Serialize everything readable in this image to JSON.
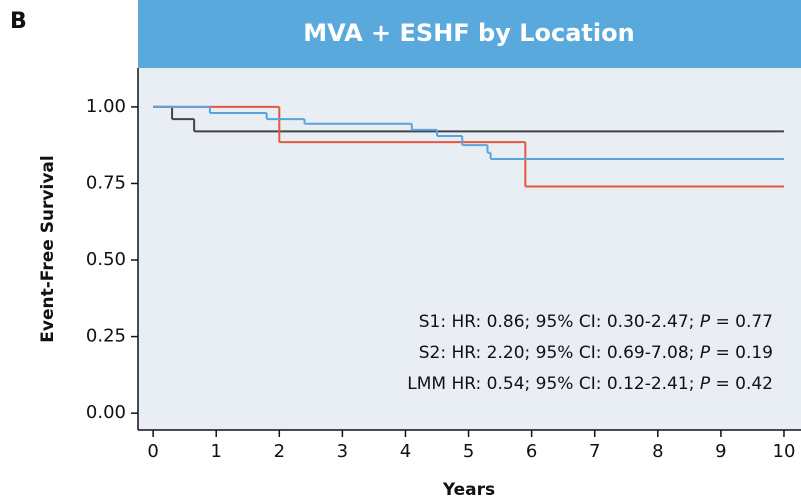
{
  "chart_data": {
    "type": "step",
    "panel_label": "B",
    "title": "MVA + ESHF by Location",
    "xlabel": "Years",
    "ylabel": "Event-Free Survival",
    "xlim": [
      -0.24,
      10.27
    ],
    "ylim": [
      -0.055,
      1.127
    ],
    "xticks": [
      0,
      1,
      2,
      3,
      4,
      5,
      6,
      7,
      8,
      9,
      10
    ],
    "yticks": [
      {
        "value": 0,
        "label": "0.00"
      },
      {
        "value": 0.25,
        "label": "0.25"
      },
      {
        "value": 0.5,
        "label": "0.50"
      },
      {
        "value": 0.75,
        "label": "0.75"
      },
      {
        "value": 1,
        "label": "1.00"
      }
    ],
    "series": [
      {
        "color": "#404448",
        "x": [
          0,
          0.3,
          0.65,
          10
        ],
        "values": [
          1.0,
          0.96,
          0.92,
          0.92
        ]
      },
      {
        "color": "#e8553f",
        "x": [
          0,
          2.0,
          5.9,
          10
        ],
        "values": [
          1.0,
          0.885,
          0.74,
          0.74
        ]
      },
      {
        "color": "#5aa3dc",
        "x": [
          0,
          0.9,
          1.8,
          2.4,
          4.1,
          4.5,
          4.9,
          5.3,
          5.35,
          10
        ],
        "values": [
          1.0,
          0.98,
          0.96,
          0.945,
          0.925,
          0.905,
          0.875,
          0.85,
          0.83,
          0.83
        ]
      }
    ],
    "annotations": [
      [
        "S1: HR: 0.86; 95% CI: 0.30-2.47; ",
        "P",
        " = 0.77"
      ],
      [
        "S2: HR: 2.20; 95% CI: 0.69-7.08; ",
        "P",
        " = 0.19"
      ],
      [
        "LMM HR: 0.54; 95% CI: 0.12-2.41; ",
        "P",
        " = 0.42"
      ]
    ]
  }
}
